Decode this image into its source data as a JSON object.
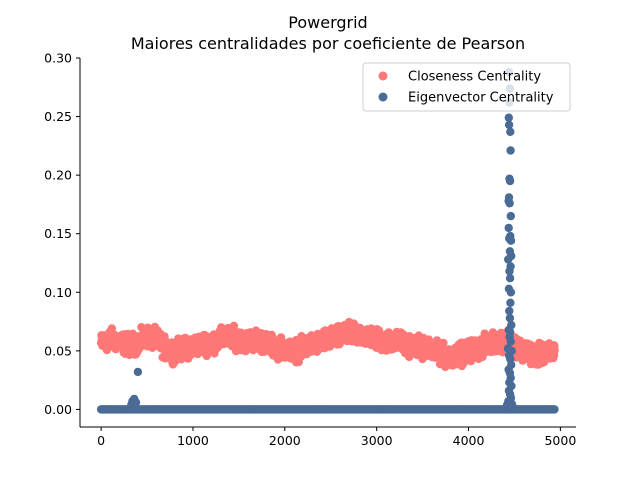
{
  "chart_data": {
    "type": "scatter",
    "title": "Powergrid",
    "subtitle": "Maiores centralidades por coeficiente de Pearson",
    "xlabel": "",
    "ylabel": "",
    "xlim": [
      -230,
      5170
    ],
    "ylim": [
      -0.015,
      0.3
    ],
    "x_ticks": [
      0,
      1000,
      2000,
      3000,
      4000,
      5000
    ],
    "x_tick_labels": [
      "0",
      "1000",
      "2000",
      "3000",
      "4000",
      "5000"
    ],
    "y_ticks": [
      0.0,
      0.05,
      0.1,
      0.15,
      0.2,
      0.25,
      0.3
    ],
    "y_tick_labels": [
      "0.00",
      "0.05",
      "0.10",
      "0.15",
      "0.20",
      "0.25",
      "0.30"
    ],
    "grid": false,
    "legend_position": "top-right",
    "series": [
      {
        "name": "Closeness Centrality",
        "color": "#ff7777",
        "n_points": 4941,
        "band_profile_x": [
          0,
          100,
          200,
          300,
          400,
          500,
          600,
          700,
          800,
          900,
          1000,
          1100,
          1200,
          1300,
          1400,
          1500,
          1600,
          1700,
          1800,
          1900,
          2000,
          2100,
          2200,
          2300,
          2400,
          2500,
          2600,
          2700,
          2800,
          2900,
          3000,
          3100,
          3200,
          3300,
          3400,
          3500,
          3600,
          3700,
          3800,
          3900,
          4000,
          4100,
          4200,
          4300,
          4400,
          4500,
          4600,
          4700,
          4800,
          4900,
          4940
        ],
        "band_profile_y": [
          0.056,
          0.06,
          0.058,
          0.055,
          0.057,
          0.062,
          0.06,
          0.052,
          0.05,
          0.052,
          0.054,
          0.056,
          0.057,
          0.06,
          0.062,
          0.06,
          0.058,
          0.06,
          0.056,
          0.053,
          0.052,
          0.05,
          0.052,
          0.056,
          0.058,
          0.06,
          0.062,
          0.064,
          0.064,
          0.063,
          0.06,
          0.058,
          0.058,
          0.056,
          0.055,
          0.053,
          0.05,
          0.047,
          0.045,
          0.047,
          0.05,
          0.052,
          0.055,
          0.058,
          0.06,
          0.056,
          0.05,
          0.047,
          0.046,
          0.048,
          0.05
        ],
        "band_spread": 0.009
      },
      {
        "name": "Eigenvector Centrality",
        "color": "#4a6b96",
        "n_points": 4941,
        "baseline_value": 0.0,
        "outliers": [
          {
            "x": 340,
            "y": 0.007
          },
          {
            "x": 360,
            "y": 0.009
          },
          {
            "x": 330,
            "y": 0.004
          },
          {
            "x": 380,
            "y": 0.006
          },
          {
            "x": 400,
            "y": 0.032
          },
          {
            "x": 4440,
            "y": 0.288
          },
          {
            "x": 4450,
            "y": 0.274
          },
          {
            "x": 4445,
            "y": 0.262
          },
          {
            "x": 4438,
            "y": 0.249
          },
          {
            "x": 4442,
            "y": 0.243
          },
          {
            "x": 4455,
            "y": 0.237
          },
          {
            "x": 4458,
            "y": 0.221
          },
          {
            "x": 4446,
            "y": 0.197
          },
          {
            "x": 4452,
            "y": 0.195
          },
          {
            "x": 4441,
            "y": 0.181
          },
          {
            "x": 4436,
            "y": 0.178
          },
          {
            "x": 4448,
            "y": 0.176
          },
          {
            "x": 4460,
            "y": 0.165
          },
          {
            "x": 4437,
            "y": 0.155
          },
          {
            "x": 4455,
            "y": 0.148
          },
          {
            "x": 4443,
            "y": 0.146
          },
          {
            "x": 4462,
            "y": 0.144
          },
          {
            "x": 4450,
            "y": 0.135
          },
          {
            "x": 4465,
            "y": 0.131
          },
          {
            "x": 4432,
            "y": 0.128
          },
          {
            "x": 4458,
            "y": 0.122
          },
          {
            "x": 4446,
            "y": 0.118
          },
          {
            "x": 4452,
            "y": 0.112
          },
          {
            "x": 4440,
            "y": 0.103
          },
          {
            "x": 4461,
            "y": 0.1
          },
          {
            "x": 4456,
            "y": 0.091
          },
          {
            "x": 4444,
            "y": 0.084
          },
          {
            "x": 4450,
            "y": 0.078
          },
          {
            "x": 4466,
            "y": 0.072
          },
          {
            "x": 4438,
            "y": 0.068
          },
          {
            "x": 4454,
            "y": 0.066
          },
          {
            "x": 4447,
            "y": 0.062
          },
          {
            "x": 4460,
            "y": 0.058
          },
          {
            "x": 4430,
            "y": 0.052
          },
          {
            "x": 4470,
            "y": 0.05
          },
          {
            "x": 4442,
            "y": 0.046
          },
          {
            "x": 4455,
            "y": 0.043
          },
          {
            "x": 4464,
            "y": 0.038
          },
          {
            "x": 4436,
            "y": 0.034
          },
          {
            "x": 4450,
            "y": 0.031
          },
          {
            "x": 4459,
            "y": 0.027
          },
          {
            "x": 4444,
            "y": 0.023
          },
          {
            "x": 4467,
            "y": 0.02
          },
          {
            "x": 4440,
            "y": 0.016
          },
          {
            "x": 4453,
            "y": 0.013
          },
          {
            "x": 4461,
            "y": 0.01
          },
          {
            "x": 4433,
            "y": 0.007
          },
          {
            "x": 4470,
            "y": 0.005
          },
          {
            "x": 4420,
            "y": 0.004
          },
          {
            "x": 4480,
            "y": 0.003
          }
        ]
      }
    ]
  }
}
